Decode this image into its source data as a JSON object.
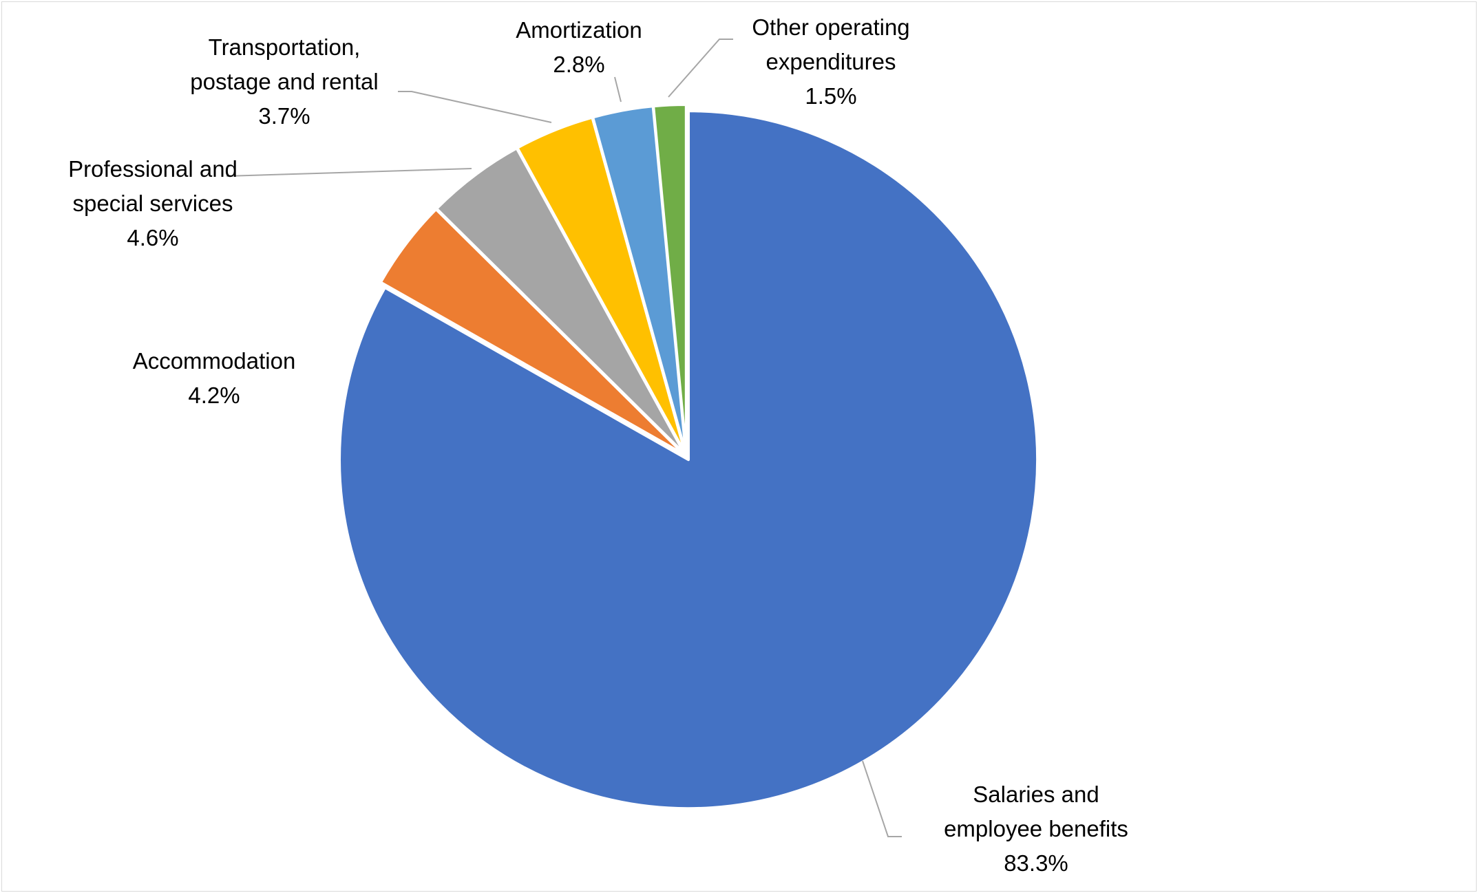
{
  "chart_data": {
    "type": "pie",
    "title": "",
    "start_angle": "12 o'clock, clockwise",
    "slices": [
      {
        "label_lines": [
          "Salaries and",
          "employee benefits"
        ],
        "value": 83.3,
        "value_label": "83.3%",
        "color": "#4472C4"
      },
      {
        "label_lines": [
          "Accommodation"
        ],
        "value": 4.2,
        "value_label": "4.2%",
        "color": "#ED7D31"
      },
      {
        "label_lines": [
          "Professional and",
          "special services"
        ],
        "value": 4.6,
        "value_label": "4.6%",
        "color": "#A5A5A5"
      },
      {
        "label_lines": [
          "Transportation,",
          "postage and rental"
        ],
        "value": 3.7,
        "value_label": "3.7%",
        "color": "#FFC000"
      },
      {
        "label_lines": [
          "Amortization"
        ],
        "value": 2.8,
        "value_label": "2.8%",
        "color": "#5B9BD5"
      },
      {
        "label_lines": [
          "Other operating",
          "expenditures"
        ],
        "value": 1.5,
        "value_label": "1.5%",
        "color": "#70AD47"
      }
    ],
    "legend": "none",
    "data_labels": "outside with leader lines"
  }
}
